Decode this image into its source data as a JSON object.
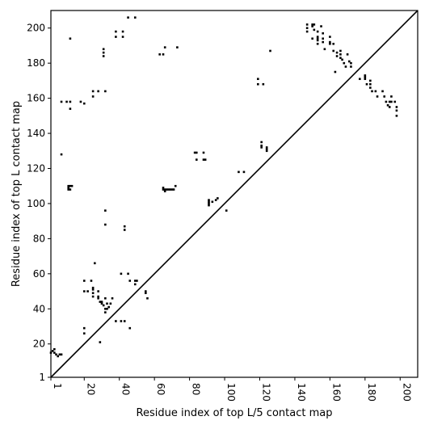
{
  "chart_data": {
    "type": "scatter",
    "title": "",
    "xlabel": "Residue index of top L/5 contact map",
    "ylabel": "Residue index of top L contact map",
    "xlim": [
      1,
      210
    ],
    "ylim": [
      1,
      210
    ],
    "x_ticks": [
      1,
      20,
      40,
      60,
      80,
      100,
      120,
      140,
      160,
      180,
      200
    ],
    "y_ticks": [
      1,
      20,
      40,
      60,
      80,
      100,
      120,
      140,
      160,
      180,
      200
    ],
    "x_tick_labels": [
      "1",
      "20",
      "40",
      "60",
      "80",
      "100",
      "120",
      "140",
      "160",
      "180",
      "200"
    ],
    "y_tick_labels": [
      "1",
      "20",
      "40",
      "60",
      "80",
      "100",
      "120",
      "140",
      "160",
      "180",
      "200"
    ],
    "x_tick_rotation": "vertical",
    "grid": false,
    "legend": "none",
    "diagonal": [
      [
        1,
        1
      ],
      [
        210,
        210
      ]
    ],
    "marker": "square",
    "color": "#000000",
    "series": [
      {
        "name": "",
        "description": "contacts above diagonal (top L contact map)",
        "points": [
          [
            12,
            194
          ],
          [
            31,
            188
          ],
          [
            31,
            186
          ],
          [
            31,
            184
          ],
          [
            38,
            198
          ],
          [
            38,
            195
          ],
          [
            42,
            198
          ],
          [
            42,
            195
          ],
          [
            45,
            206
          ],
          [
            49,
            206
          ],
          [
            63,
            185
          ],
          [
            65,
            185
          ],
          [
            66,
            189
          ],
          [
            73,
            189
          ],
          [
            126,
            187
          ],
          [
            7,
            158
          ],
          [
            10,
            158
          ],
          [
            12,
            158
          ],
          [
            12,
            154
          ],
          [
            18,
            158
          ],
          [
            20,
            157
          ],
          [
            25,
            164
          ],
          [
            25,
            161
          ],
          [
            28,
            164
          ],
          [
            32,
            164
          ],
          [
            7,
            128
          ],
          [
            11,
            110
          ],
          [
            11,
            109
          ],
          [
            11,
            108
          ],
          [
            12,
            110
          ],
          [
            12,
            108
          ],
          [
            13,
            110
          ],
          [
            32,
            96
          ],
          [
            32,
            88
          ],
          [
            43,
            87
          ],
          [
            43,
            85
          ],
          [
            65,
            109
          ],
          [
            65,
            108
          ],
          [
            66,
            108
          ],
          [
            66,
            107
          ],
          [
            67,
            108
          ],
          [
            68,
            108
          ],
          [
            69,
            108
          ],
          [
            70,
            108
          ],
          [
            71,
            108
          ],
          [
            72,
            110
          ],
          [
            83,
            129
          ],
          [
            84,
            129
          ],
          [
            88,
            129
          ],
          [
            84,
            125
          ],
          [
            88,
            125
          ],
          [
            89,
            125
          ],
          [
            91,
            102
          ],
          [
            91,
            101
          ],
          [
            91,
            100
          ],
          [
            91,
            99
          ],
          [
            93,
            101
          ],
          [
            95,
            102
          ],
          [
            96,
            103
          ],
          [
            101,
            96
          ],
          [
            108,
            118
          ],
          [
            111,
            118
          ],
          [
            119,
            171
          ],
          [
            119,
            168
          ],
          [
            122,
            168
          ],
          [
            121,
            135
          ],
          [
            121,
            133
          ],
          [
            121,
            132
          ],
          [
            124,
            132
          ],
          [
            124,
            131
          ],
          [
            124,
            130
          ],
          [
            147,
            202
          ],
          [
            147,
            200
          ],
          [
            147,
            198
          ],
          [
            150,
            202
          ],
          [
            150,
            201
          ],
          [
            151,
            202
          ],
          [
            151,
            199
          ],
          [
            153,
            198
          ],
          [
            155,
            201
          ],
          [
            150,
            194
          ],
          [
            153,
            195
          ],
          [
            153,
            194
          ],
          [
            153,
            193
          ],
          [
            153,
            191
          ],
          [
            156,
            197
          ],
          [
            156,
            194
          ],
          [
            156,
            192
          ],
          [
            157,
            188
          ],
          [
            160,
            195
          ],
          [
            160,
            192
          ],
          [
            160,
            191
          ],
          [
            162,
            191
          ],
          [
            162,
            187
          ],
          [
            163,
            175
          ],
          [
            164,
            186
          ],
          [
            164,
            184
          ],
          [
            166,
            187
          ],
          [
            166,
            185
          ],
          [
            166,
            183
          ],
          [
            167,
            182
          ],
          [
            168,
            180
          ],
          [
            169,
            178
          ],
          [
            170,
            185
          ],
          [
            171,
            181
          ],
          [
            172,
            180
          ],
          [
            172,
            178
          ],
          [
            177,
            171
          ],
          [
            180,
            173
          ],
          [
            180,
            172
          ],
          [
            180,
            171
          ],
          [
            181,
            168
          ],
          [
            183,
            170
          ],
          [
            183,
            168
          ],
          [
            183,
            166
          ],
          [
            184,
            164
          ],
          [
            186,
            164
          ],
          [
            187,
            161
          ],
          [
            190,
            164
          ],
          [
            191,
            161
          ],
          [
            192,
            158
          ],
          [
            193,
            156
          ],
          [
            194,
            158
          ],
          [
            194,
            155
          ],
          [
            195,
            161
          ],
          [
            195,
            158
          ],
          [
            197,
            158
          ],
          [
            198,
            155
          ],
          [
            198,
            153
          ],
          [
            198,
            150
          ],
          [
            1,
            15
          ],
          [
            2,
            16
          ],
          [
            3,
            17
          ],
          [
            3,
            15
          ],
          [
            4,
            14
          ],
          [
            5,
            13
          ],
          [
            6,
            14
          ],
          [
            7,
            14
          ],
          [
            20,
            29
          ],
          [
            20,
            26
          ],
          [
            20,
            56
          ],
          [
            20,
            50
          ],
          [
            22,
            50
          ],
          [
            24,
            56
          ],
          [
            25,
            52
          ],
          [
            25,
            51
          ],
          [
            25,
            49
          ],
          [
            25,
            47
          ],
          [
            26,
            66
          ],
          [
            28,
            50
          ],
          [
            28,
            46
          ],
          [
            28,
            47
          ],
          [
            29,
            44
          ],
          [
            29,
            21
          ],
          [
            30,
            43
          ],
          [
            30,
            44
          ],
          [
            31,
            42
          ],
          [
            32,
            46
          ],
          [
            32,
            40
          ],
          [
            32,
            38
          ],
          [
            33,
            43
          ],
          [
            33,
            40
          ],
          [
            34,
            41
          ],
          [
            35,
            43
          ],
          [
            36,
            46
          ],
          [
            38,
            33
          ],
          [
            41,
            60
          ],
          [
            41,
            33
          ],
          [
            43,
            33
          ],
          [
            45,
            60
          ],
          [
            46,
            56
          ],
          [
            46,
            29
          ],
          [
            49,
            56
          ],
          [
            49,
            54
          ],
          [
            50,
            56
          ],
          [
            55,
            50
          ],
          [
            55,
            49
          ],
          [
            56,
            46
          ]
        ]
      }
    ]
  }
}
